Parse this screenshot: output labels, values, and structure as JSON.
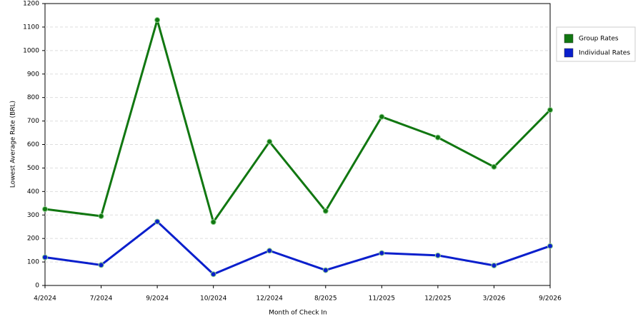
{
  "chart_data": {
    "type": "line",
    "x_label": "Month of Check In",
    "y_label": "Lowest Average Rate (BRL)",
    "categories": [
      "4/2024",
      "7/2024",
      "9/2024",
      "10/2024",
      "12/2024",
      "8/2025",
      "11/2025",
      "12/2025",
      "3/2026",
      "9/2026"
    ],
    "series": [
      {
        "name": "Group Rates",
        "color": "#117711",
        "values": [
          325,
          295,
          1130,
          270,
          612,
          317,
          718,
          630,
          505,
          747
        ]
      },
      {
        "name": "Individual Rates",
        "color": "#0a1fcc",
        "values": [
          120,
          87,
          272,
          48,
          148,
          65,
          138,
          128,
          85,
          168
        ]
      }
    ],
    "ylim": [
      0,
      1200
    ],
    "yticks": [
      0,
      100,
      200,
      300,
      400,
      500,
      600,
      700,
      800,
      900,
      1000,
      1100,
      1200
    ],
    "grid": true,
    "legend": "right"
  }
}
